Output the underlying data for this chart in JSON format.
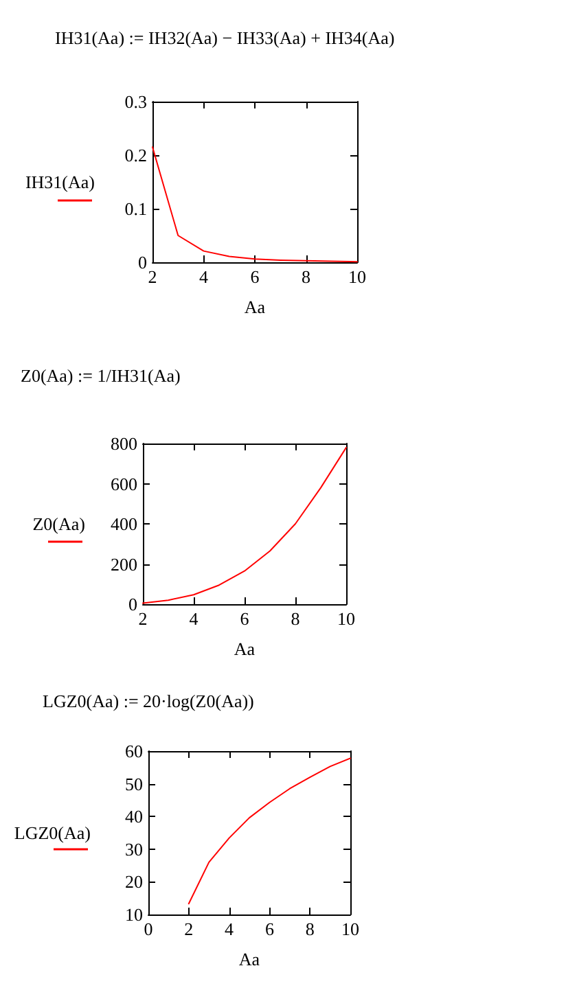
{
  "chart_data": [
    {
      "type": "line",
      "title": "IH31(Aa) := IH32(Aa) − IH33(Aa) + IH34(Aa)",
      "xlabel": "Aa",
      "ylabel": "IH31(Aa)",
      "x": [
        2,
        3,
        4,
        5,
        6,
        7,
        8,
        9,
        10
      ],
      "series": [
        {
          "color": "#ff0000",
          "values": [
            0.215,
            0.05,
            0.021,
            0.011,
            0.006,
            0.004,
            0.003,
            0.002,
            0.001
          ]
        }
      ],
      "xlim": [
        2,
        10
      ],
      "xticks": [
        2,
        4,
        6,
        8,
        10
      ],
      "ylim": [
        0,
        0.3
      ],
      "yticks": [
        0,
        0.1,
        0.2,
        0.3
      ],
      "grid": false,
      "marker": "none",
      "line_style": "solid"
    },
    {
      "type": "line",
      "title": "Z0(Aa) := 1/IH31(Aa)",
      "xlabel": "Aa",
      "ylabel": "Z0(Aa)",
      "x": [
        2,
        3,
        4,
        5,
        6,
        7,
        8,
        9,
        10
      ],
      "series": [
        {
          "color": "#ff0000",
          "values": [
            5,
            20,
            47,
            95,
            165,
            265,
            400,
            580,
            780
          ]
        }
      ],
      "xlim": [
        2,
        10
      ],
      "xticks": [
        2,
        4,
        6,
        8,
        10
      ],
      "ylim": [
        0,
        800
      ],
      "yticks": [
        0,
        200,
        400,
        600,
        800
      ],
      "grid": false,
      "marker": "none",
      "line_style": "solid"
    },
    {
      "type": "line",
      "title": "LGZ0(Aa) := 20·log(Z0(Aa))",
      "xlabel": "Aa",
      "ylabel": "LGZ0(Aa)",
      "x": [
        2,
        3,
        4,
        5,
        6,
        7,
        8,
        9,
        10
      ],
      "series": [
        {
          "color": "#ff0000",
          "values": [
            13.3,
            26,
            33.4,
            39.6,
            44.3,
            48.5,
            52,
            55.3,
            57.8
          ]
        }
      ],
      "xlim": [
        0,
        10
      ],
      "xticks": [
        0,
        2,
        4,
        6,
        8,
        10
      ],
      "ylim": [
        10,
        60
      ],
      "yticks": [
        10,
        20,
        30,
        40,
        50,
        60
      ],
      "grid": false,
      "marker": "none",
      "line_style": "solid"
    }
  ]
}
